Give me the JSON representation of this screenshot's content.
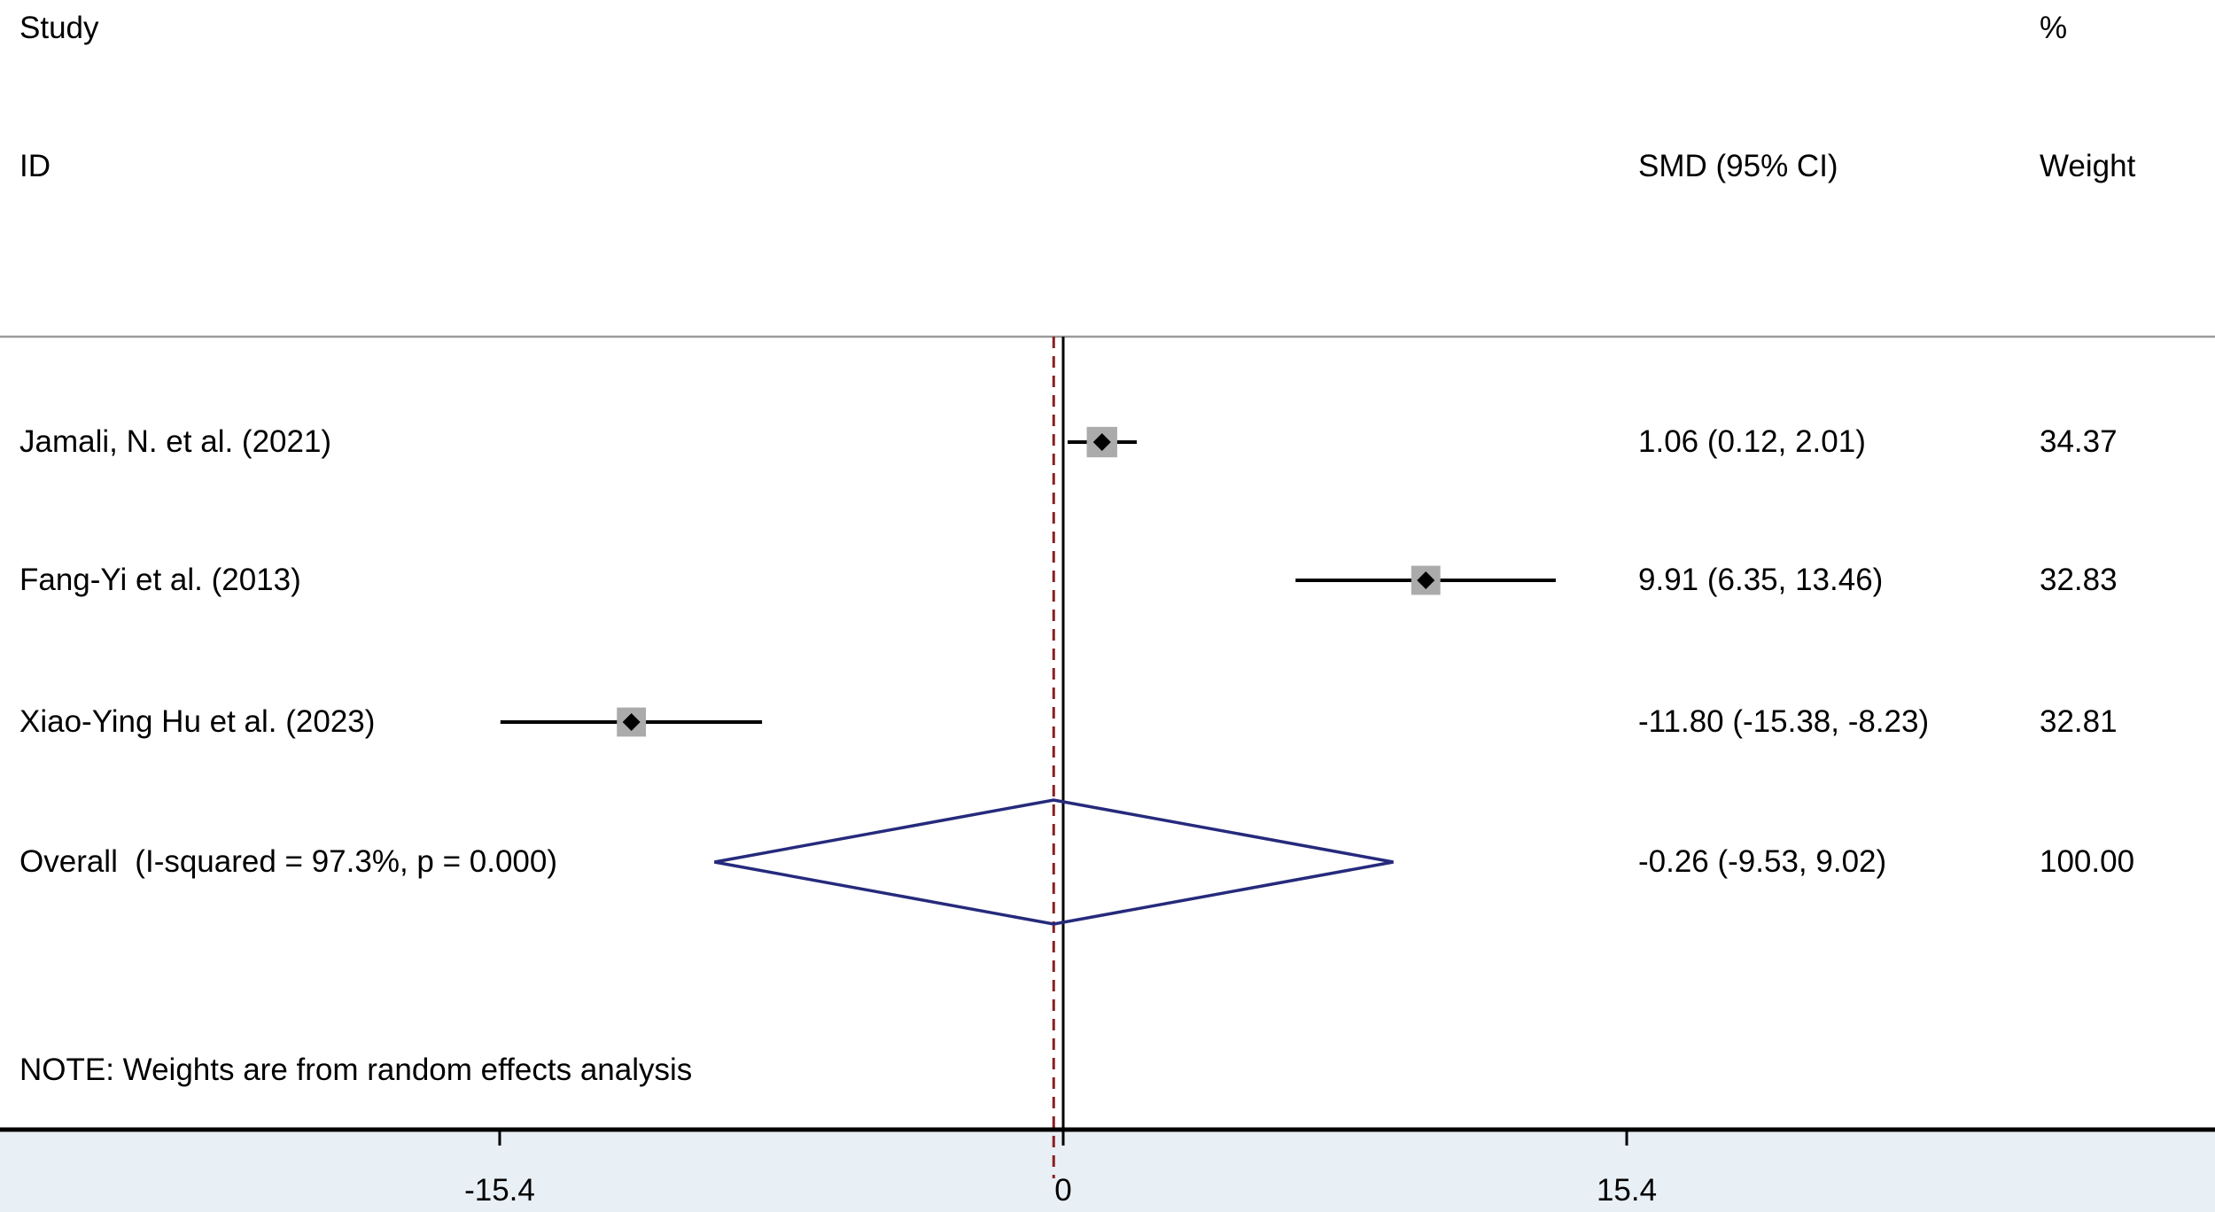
{
  "header": {
    "col_study_line1": "Study",
    "col_study_line2": "ID",
    "col_smd": "SMD (95% CI)",
    "col_weight_line1": "%",
    "col_weight_line2": "Weight"
  },
  "note": "NOTE: Weights are from random effects analysis",
  "colors": {
    "axis": "#000000",
    "separator": "#9a9a9a",
    "dashed": "#8b2022",
    "weight_square": "#ababab",
    "diamond": "#262a7c",
    "footer_band": "#e8eff5",
    "text": "#000000"
  },
  "chart_data": {
    "type": "forest",
    "title": "",
    "xlabel": "",
    "x_axis": {
      "ticks": [
        -15.4,
        0,
        15.4
      ],
      "tick_labels": [
        "-15.4",
        "0",
        "15.4"
      ],
      "zero_line": 0
    },
    "studies": [
      {
        "id": "Jamali, N. et al. (2021)",
        "smd": 1.06,
        "ci_low": 0.12,
        "ci_high": 2.01,
        "label": "1.06 (0.12, 2.01)",
        "weight": 34.37,
        "weight_label": "34.37"
      },
      {
        "id": "Fang-Yi et al. (2013)",
        "smd": 9.91,
        "ci_low": 6.35,
        "ci_high": 13.46,
        "label": "9.91 (6.35, 13.46)",
        "weight": 32.83,
        "weight_label": "32.83"
      },
      {
        "id": "Xiao-Ying Hu et al. (2023)",
        "smd": -11.8,
        "ci_low": -15.38,
        "ci_high": -8.23,
        "label": "-11.80 (-15.38, -8.23)",
        "weight": 32.81,
        "weight_label": "32.81"
      }
    ],
    "overall": {
      "id": "Overall  (I-squared = 97.3%, p = 0.000)",
      "smd": -0.26,
      "ci_low": -9.53,
      "ci_high": 9.02,
      "label": "-0.26 (-9.53, 9.02)",
      "weight": 100.0,
      "weight_label": "100.00"
    }
  }
}
